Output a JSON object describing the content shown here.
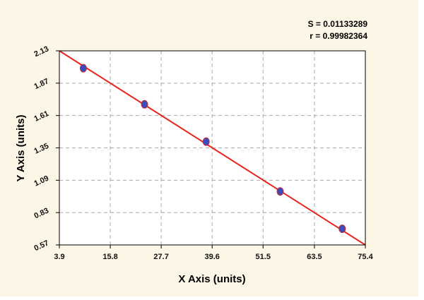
{
  "colors": {
    "background": "#fdf6e6",
    "plot_area": "#ffffff",
    "grid": "#a8a8a8",
    "fit_line": "#e8231c",
    "points": "#3b4cc0",
    "points_edge": "#c42a2a",
    "text": "#111111"
  },
  "chart_data": {
    "type": "scatter",
    "title": "",
    "xlabel": "X Axis (units)",
    "ylabel": "Y Axis (units)",
    "xlim": [
      3.9,
      75.4
    ],
    "ylim": [
      0.57,
      2.13
    ],
    "x_ticks": [
      3.9,
      15.8,
      27.7,
      39.6,
      51.5,
      63.5,
      75.4
    ],
    "x_tick_labels": [
      "3.9",
      "15.8",
      "27.7",
      "39.6",
      "51.5",
      "63.5",
      "75.4"
    ],
    "y_ticks": [
      0.57,
      0.83,
      1.09,
      1.35,
      1.61,
      1.87,
      2.13
    ],
    "y_tick_labels": [
      "0.57",
      "0.83",
      "1.09",
      "1.35",
      "1.61",
      "1.87",
      "2.13"
    ],
    "grid": true,
    "points": [
      {
        "x": 9.5,
        "y": 1.99
      },
      {
        "x": 23.8,
        "y": 1.7
      },
      {
        "x": 38.2,
        "y": 1.4
      },
      {
        "x": 55.5,
        "y": 1.0
      },
      {
        "x": 70.0,
        "y": 0.7
      }
    ],
    "fit_line": {
      "x": [
        3.9,
        75.4
      ],
      "y": [
        2.13,
        0.57
      ]
    },
    "annotations": [
      "S = 0.01133289",
      "r = 0.99982364"
    ]
  }
}
